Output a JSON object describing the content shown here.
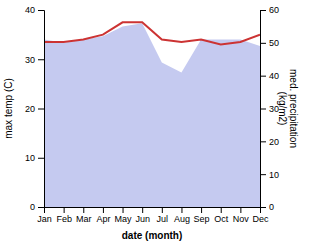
{
  "chart_data": {
    "type": "line",
    "categories": [
      "Jan",
      "Feb",
      "Mar",
      "Apr",
      "May",
      "Jun",
      "Jul",
      "Aug",
      "Sep",
      "Oct",
      "Nov",
      "Dec"
    ],
    "series": [
      {
        "type": "area",
        "color": "#c5caf0",
        "axis": "y2",
        "values": [
          51,
          50,
          51,
          52,
          55,
          56,
          44,
          41,
          51,
          51,
          51,
          49
        ]
      },
      {
        "type": "line",
        "color": "#cc3333",
        "values": [
          33.5,
          33.5,
          34.0,
          35.0,
          37.5,
          37.5,
          34.0,
          33.5,
          34.0,
          33.0,
          33.5,
          35.0
        ]
      }
    ],
    "xlabel": "date (month)",
    "ylabel": "max temp (C)",
    "y2label": "med. precipitation\n(kg/m2)",
    "ylim": [
      0,
      40
    ],
    "yticks": [
      0,
      10,
      20,
      30,
      40
    ],
    "y2lim": [
      0,
      60
    ],
    "y2ticks": [
      0,
      10,
      20,
      30,
      40,
      50,
      60
    ]
  }
}
